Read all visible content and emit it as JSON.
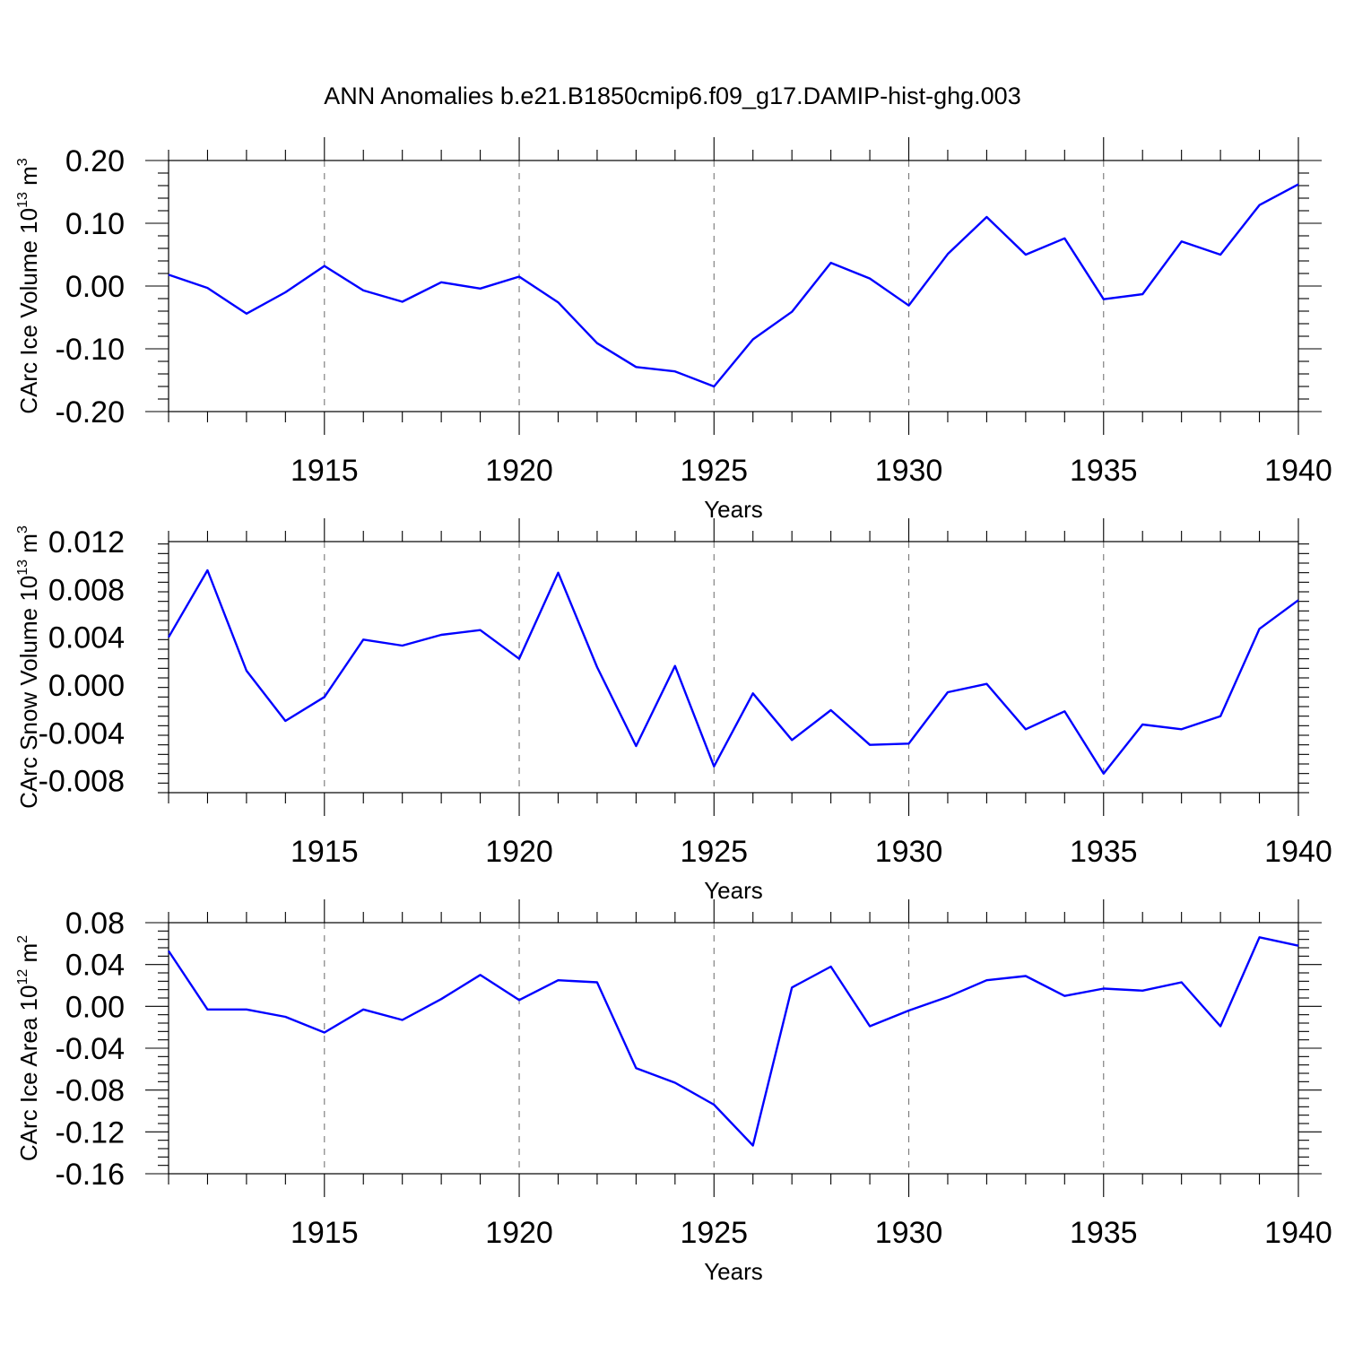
{
  "chart_data": [
    {
      "type": "line",
      "title": "ANN Anomalies b.e21.B1850cmip6.f09_g17.DAMIP-hist-ghg.003",
      "xlabel": "Years",
      "ylabel": "CArc Ice Volume 10",
      "ylabel_exp": "13",
      "ylabel_unit": " m",
      "ylabel_unit_exp": "3",
      "xlim": [
        1911,
        1940
      ],
      "ylim": [
        -0.2,
        0.2
      ],
      "yticks": [
        -0.2,
        -0.1,
        0.0,
        0.1,
        0.2
      ],
      "ytick_labels": [
        "-0.20",
        "-0.10",
        "0.00",
        "0.10",
        "0.20"
      ],
      "xticks": [
        1915,
        1920,
        1925,
        1930,
        1935,
        1940
      ],
      "xtick_labels": [
        "1915",
        "1920",
        "1925",
        "1930",
        "1935",
        "1940"
      ],
      "grid": "dashed vertical at major x ticks",
      "color": "#0000ff",
      "x": [
        1911,
        1912,
        1913,
        1914,
        1915,
        1916,
        1917,
        1918,
        1919,
        1920,
        1921,
        1922,
        1923,
        1924,
        1925,
        1926,
        1927,
        1928,
        1929,
        1930,
        1931,
        1932,
        1933,
        1934,
        1935,
        1936,
        1937,
        1938,
        1939,
        1940
      ],
      "values": [
        0.018,
        -0.003,
        -0.044,
        -0.01,
        0.032,
        -0.007,
        -0.025,
        0.006,
        -0.004,
        0.015,
        -0.026,
        -0.091,
        -0.129,
        -0.136,
        -0.16,
        -0.085,
        -0.041,
        0.037,
        0.012,
        -0.031,
        0.051,
        0.11,
        0.05,
        0.076,
        -0.021,
        -0.013,
        0.071,
        0.05,
        0.129,
        0.162
      ]
    },
    {
      "type": "line",
      "title": "",
      "xlabel": "Years",
      "ylabel": "CArc Snow Volume 10",
      "ylabel_exp": "13",
      "ylabel_unit": " m",
      "ylabel_unit_exp": "3",
      "xlim": [
        1911,
        1940
      ],
      "ylim": [
        -0.009,
        0.012
      ],
      "yticks": [
        -0.008,
        -0.004,
        0.0,
        0.004,
        0.008,
        0.012
      ],
      "ytick_labels": [
        "-0.008",
        "-0.004",
        "0.000",
        "0.004",
        "0.008",
        "0.012"
      ],
      "xticks": [
        1915,
        1920,
        1925,
        1930,
        1935,
        1940
      ],
      "xtick_labels": [
        "1915",
        "1920",
        "1925",
        "1930",
        "1935",
        "1940"
      ],
      "grid": "dashed vertical at major x ticks",
      "color": "#0000ff",
      "x": [
        1911,
        1912,
        1913,
        1914,
        1915,
        1916,
        1917,
        1918,
        1919,
        1920,
        1921,
        1922,
        1923,
        1924,
        1925,
        1926,
        1927,
        1928,
        1929,
        1930,
        1931,
        1932,
        1933,
        1934,
        1935,
        1936,
        1937,
        1938,
        1939,
        1940
      ],
      "values": [
        0.004,
        0.0096,
        0.0012,
        -0.003,
        -0.001,
        0.0038,
        0.0033,
        0.0042,
        0.0046,
        0.0022,
        0.0094,
        0.0015,
        -0.0051,
        0.0016,
        -0.0068,
        -0.0007,
        -0.0046,
        -0.0021,
        -0.005,
        -0.0049,
        -0.0006,
        0.0001,
        -0.0037,
        -0.0022,
        -0.0074,
        -0.0033,
        -0.0037,
        -0.0026,
        0.0047,
        0.0071
      ]
    },
    {
      "type": "line",
      "title": "",
      "xlabel": "Years",
      "ylabel": "CArc Ice Area 10",
      "ylabel_exp": "12",
      "ylabel_unit": " m",
      "ylabel_unit_exp": "2",
      "xlim": [
        1911,
        1940
      ],
      "ylim": [
        -0.16,
        0.08
      ],
      "yticks": [
        -0.16,
        -0.12,
        -0.08,
        -0.04,
        0.0,
        0.04,
        0.08
      ],
      "ytick_labels": [
        "-0.16",
        "-0.12",
        "-0.08",
        "-0.04",
        "0.00",
        "0.04",
        "0.08"
      ],
      "xticks": [
        1915,
        1920,
        1925,
        1930,
        1935,
        1940
      ],
      "xtick_labels": [
        "1915",
        "1920",
        "1925",
        "1930",
        "1935",
        "1940"
      ],
      "grid": "dashed vertical at major x ticks",
      "color": "#0000ff",
      "x": [
        1911,
        1912,
        1913,
        1914,
        1915,
        1916,
        1917,
        1918,
        1919,
        1920,
        1921,
        1922,
        1923,
        1924,
        1925,
        1926,
        1927,
        1928,
        1929,
        1930,
        1931,
        1932,
        1933,
        1934,
        1935,
        1936,
        1937,
        1938,
        1939,
        1940
      ],
      "values": [
        0.053,
        -0.003,
        -0.003,
        -0.01,
        -0.025,
        -0.003,
        -0.013,
        0.007,
        0.03,
        0.006,
        0.025,
        0.023,
        -0.059,
        -0.073,
        -0.094,
        -0.133,
        0.018,
        0.038,
        -0.019,
        -0.004,
        0.009,
        0.025,
        0.029,
        0.01,
        0.017,
        0.015,
        0.023,
        -0.019,
        0.066,
        0.058
      ]
    }
  ]
}
